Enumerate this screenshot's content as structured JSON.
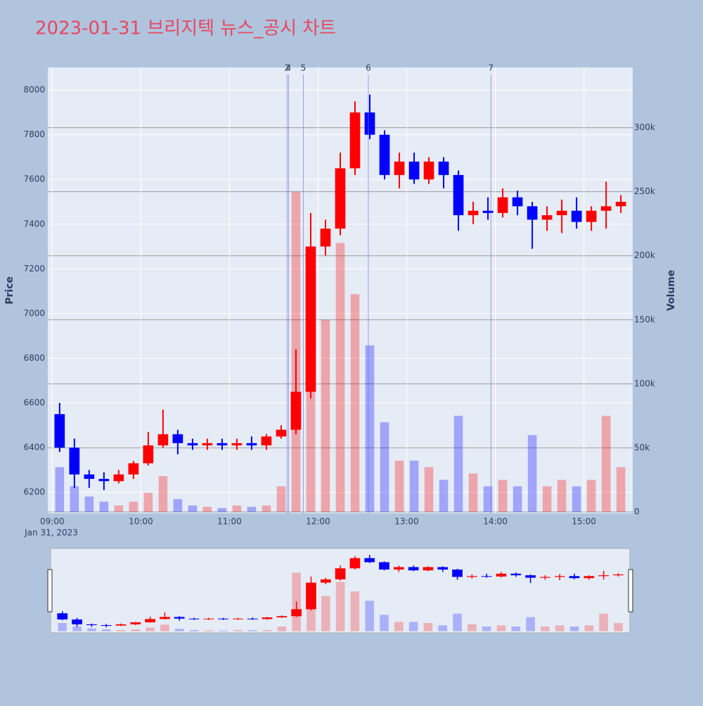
{
  "chart_data": {
    "type": "candlestick",
    "title": "2023-01-31 브리지텍 뉴스_공시 차트",
    "y_label": "Price",
    "y2_label": "Volume",
    "x_date_label": "Jan 31, 2023",
    "increasing_color": "#ff0000",
    "decreasing_color": "#0000ff",
    "x": [
      "2023-01-31 09:00",
      "2023-01-31 09:10",
      "2023-01-31 09:20",
      "2023-01-31 09:30",
      "2023-01-31 09:40",
      "2023-01-31 09:50",
      "2023-01-31 10:00",
      "2023-01-31 10:10",
      "2023-01-31 10:20",
      "2023-01-31 10:30",
      "2023-01-31 10:40",
      "2023-01-31 10:50",
      "2023-01-31 11:00",
      "2023-01-31 11:10",
      "2023-01-31 11:20",
      "2023-01-31 11:30",
      "2023-01-31 11:40",
      "2023-01-31 11:50",
      "2023-01-31 12:00",
      "2023-01-31 12:10",
      "2023-01-31 12:20",
      "2023-01-31 12:30",
      "2023-01-31 12:40",
      "2023-01-31 12:50",
      "2023-01-31 13:00",
      "2023-01-31 13:10",
      "2023-01-31 13:20",
      "2023-01-31 13:30",
      "2023-01-31 13:40",
      "2023-01-31 13:50",
      "2023-01-31 14:00",
      "2023-01-31 14:10",
      "2023-01-31 14:20",
      "2023-01-31 14:30",
      "2023-01-31 14:40",
      "2023-01-31 14:50",
      "2023-01-31 15:00",
      "2023-01-31 15:10",
      "2023-01-31 15:20"
    ],
    "open": [
      6550,
      6400,
      6280,
      6260,
      6250,
      6280,
      6330,
      6410,
      6460,
      6420,
      6410,
      6420,
      6410,
      6420,
      6410,
      6450,
      6480,
      6650,
      7300,
      7380,
      7650,
      7900,
      7800,
      7620,
      7680,
      7600,
      7680,
      7620,
      7440,
      7460,
      7450,
      7520,
      7480,
      7420,
      7440,
      7460,
      7410,
      7460,
      7480
    ],
    "high": [
      6600,
      6440,
      6300,
      6290,
      6300,
      6340,
      6470,
      6570,
      6480,
      6440,
      6440,
      6440,
      6440,
      6450,
      6460,
      6500,
      6840,
      7450,
      7420,
      7720,
      7950,
      7980,
      7820,
      7720,
      7720,
      7700,
      7700,
      7640,
      7500,
      7520,
      7560,
      7550,
      7500,
      7480,
      7510,
      7520,
      7480,
      7590,
      7530
    ],
    "low": [
      6380,
      6220,
      6220,
      6210,
      6240,
      6260,
      6320,
      6400,
      6370,
      6390,
      6390,
      6390,
      6390,
      6390,
      6390,
      6440,
      6460,
      6620,
      7260,
      7350,
      7620,
      7780,
      7600,
      7560,
      7580,
      7580,
      7560,
      7370,
      7400,
      7420,
      7430,
      7440,
      7290,
      7370,
      7360,
      7380,
      7370,
      7380,
      7450
    ],
    "close": [
      6400,
      6280,
      6260,
      6250,
      6280,
      6330,
      6410,
      6460,
      6420,
      6410,
      6420,
      6410,
      6420,
      6410,
      6450,
      6480,
      6650,
      7300,
      7380,
      7650,
      7900,
      7800,
      7620,
      7680,
      7600,
      7680,
      7620,
      7440,
      7460,
      7450,
      7520,
      7480,
      7420,
      7440,
      7460,
      7410,
      7460,
      7480,
      7500
    ],
    "volume": [
      35000,
      20000,
      12000,
      8000,
      5000,
      8000,
      15000,
      28000,
      10000,
      5000,
      4000,
      3000,
      5000,
      4000,
      5000,
      20000,
      250000,
      180000,
      150000,
      210000,
      170000,
      130000,
      70000,
      40000,
      40000,
      35000,
      25000,
      75000,
      30000,
      20000,
      25000,
      20000,
      60000,
      20000,
      25000,
      20000,
      25000,
      75000,
      35000
    ],
    "xlim": [
      "2023-01-31 08:57",
      "2023-01-31 15:33"
    ],
    "xticks": [
      {
        "value": "2023-01-31 09:00",
        "label": "09:00"
      },
      {
        "value": "2023-01-31 10:00",
        "label": "10:00"
      },
      {
        "value": "2023-01-31 11:00",
        "label": "11:00"
      },
      {
        "value": "2023-01-31 12:00",
        "label": "12:00"
      },
      {
        "value": "2023-01-31 13:00",
        "label": "13:00"
      },
      {
        "value": "2023-01-31 14:00",
        "label": "14:00"
      },
      {
        "value": "2023-01-31 15:00",
        "label": "15:00"
      }
    ],
    "ylim": [
      6106,
      8101
    ],
    "yticks": [
      6200,
      6400,
      6600,
      6800,
      7000,
      7200,
      7400,
      7600,
      7800,
      8000
    ],
    "y2lim": [
      -1100,
      347000
    ],
    "y2ticks": [
      0,
      {
        "value": 50000,
        "label": "50k"
      },
      {
        "value": 100000,
        "label": "100k"
      },
      {
        "value": 150000,
        "label": "150k"
      },
      {
        "value": 200000,
        "label": "200k"
      },
      {
        "value": 250000,
        "label": "250k"
      },
      {
        "value": 300000,
        "label": "300k"
      }
    ],
    "annotations": [
      {
        "x": "2023-01-31 11:39",
        "text": "2"
      },
      {
        "x": "2023-01-31 11:40",
        "text": "4"
      },
      {
        "x": "2023-01-31 11:50",
        "text": "5"
      },
      {
        "x": "2023-01-31 12:34",
        "text": "6"
      },
      {
        "x": "2023-01-31 13:57",
        "text": "7"
      }
    ]
  }
}
